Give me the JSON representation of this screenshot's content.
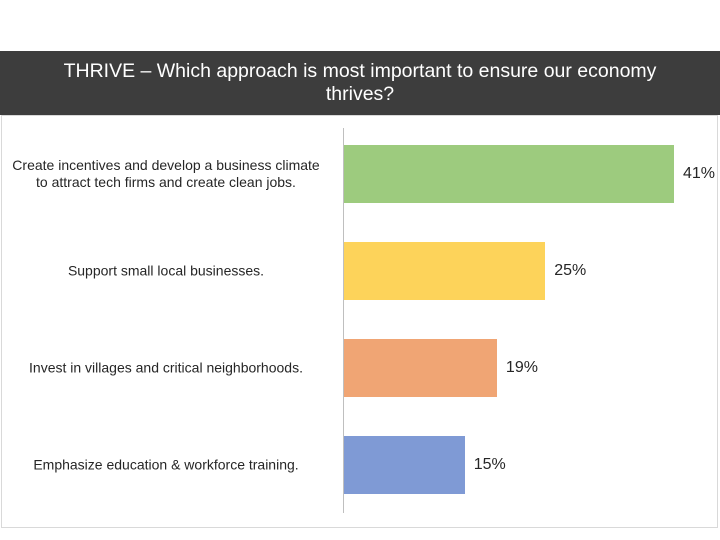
{
  "header": {
    "title": "THRIVE – Which approach is most important to ensure our economy thrives?"
  },
  "chart_data": {
    "type": "bar",
    "orientation": "horizontal",
    "title": "THRIVE – Which approach is most important to ensure our economy thrives?",
    "categories": [
      "Create incentives and develop a business climate to attract tech firms and create clean jobs.",
      "Support small local businesses.",
      "Invest in villages and critical neighborhoods.",
      "Emphasize education & workforce training."
    ],
    "values": [
      41,
      25,
      19,
      15
    ],
    "value_labels": [
      "41%",
      "25%",
      "19%",
      "15%"
    ],
    "colors": [
      "#9dcb7e",
      "#fdd35a",
      "#f0a574",
      "#7f9ad5"
    ],
    "grid": false
  }
}
